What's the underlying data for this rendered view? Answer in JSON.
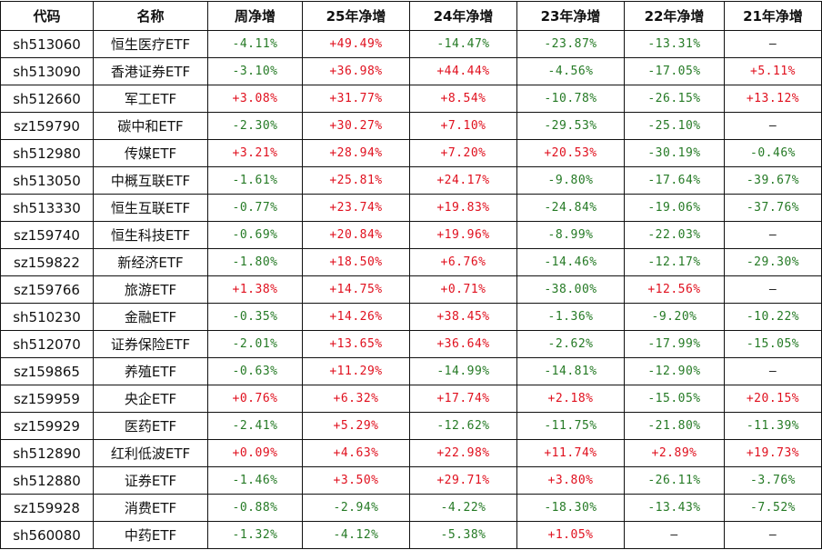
{
  "colors": {
    "positive": "#e0101e",
    "negative": "#257a25"
  },
  "headers": [
    "代码",
    "名称",
    "周净增",
    "25年净增",
    "24年净增",
    "23年净增",
    "22年净增",
    "21年净增"
  ],
  "rows": [
    [
      "sh513060",
      "恒生医疗ETF",
      "-4.11%",
      "+49.49%",
      "-14.47%",
      "-23.87%",
      "-13.31%",
      "—"
    ],
    [
      "sh513090",
      "香港证券ETF",
      "-3.10%",
      "+36.98%",
      "+44.44%",
      "-4.56%",
      "-17.05%",
      "+5.11%"
    ],
    [
      "sh512660",
      "军工ETF",
      "+3.08%",
      "+31.77%",
      "+8.54%",
      "-10.78%",
      "-26.15%",
      "+13.12%"
    ],
    [
      "sz159790",
      "碳中和ETF",
      "-2.30%",
      "+30.27%",
      "+7.10%",
      "-29.53%",
      "-25.10%",
      "—"
    ],
    [
      "sh512980",
      "传媒ETF",
      "+3.21%",
      "+28.94%",
      "+7.20%",
      "+20.53%",
      "-30.19%",
      "-0.46%"
    ],
    [
      "sh513050",
      "中概互联ETF",
      "-1.61%",
      "+25.81%",
      "+24.17%",
      "-9.80%",
      "-17.64%",
      "-39.67%"
    ],
    [
      "sh513330",
      "恒生互联ETF",
      "-0.77%",
      "+23.74%",
      "+19.83%",
      "-24.84%",
      "-19.06%",
      "-37.76%"
    ],
    [
      "sz159740",
      "恒生科技ETF",
      "-0.69%",
      "+20.84%",
      "+19.96%",
      "-8.99%",
      "-22.03%",
      "—"
    ],
    [
      "sz159822",
      "新经济ETF",
      "-1.80%",
      "+18.50%",
      "+6.76%",
      "-14.46%",
      "-12.17%",
      "-29.30%"
    ],
    [
      "sz159766",
      "旅游ETF",
      "+1.38%",
      "+14.75%",
      "+0.71%",
      "-38.00%",
      "+12.56%",
      "—"
    ],
    [
      "sh510230",
      "金融ETF",
      "-0.35%",
      "+14.26%",
      "+38.45%",
      "-1.36%",
      "-9.20%",
      "-10.22%"
    ],
    [
      "sh512070",
      "证券保险ETF",
      "-2.01%",
      "+13.65%",
      "+36.64%",
      "-2.62%",
      "-17.99%",
      "-15.05%"
    ],
    [
      "sz159865",
      "养殖ETF",
      "-0.63%",
      "+11.29%",
      "-14.99%",
      "-14.81%",
      "-12.90%",
      "—"
    ],
    [
      "sz159959",
      "央企ETF",
      "+0.76%",
      "+6.32%",
      "+17.74%",
      "+2.18%",
      "-15.05%",
      "+20.15%"
    ],
    [
      "sz159929",
      "医药ETF",
      "-2.41%",
      "+5.29%",
      "-12.62%",
      "-11.75%",
      "-21.80%",
      "-11.39%"
    ],
    [
      "sh512890",
      "红利低波ETF",
      "+0.09%",
      "+4.63%",
      "+22.98%",
      "+11.74%",
      "+2.89%",
      "+19.73%"
    ],
    [
      "sh512880",
      "证券ETF",
      "-1.46%",
      "+3.50%",
      "+29.71%",
      "+3.80%",
      "-26.11%",
      "-3.76%"
    ],
    [
      "sz159928",
      "消费ETF",
      "-0.88%",
      "-2.94%",
      "-4.22%",
      "-18.30%",
      "-13.43%",
      "-7.52%"
    ],
    [
      "sh560080",
      "中药ETF",
      "-1.32%",
      "-4.12%",
      "-5.38%",
      "+1.05%",
      "—",
      "—"
    ]
  ]
}
